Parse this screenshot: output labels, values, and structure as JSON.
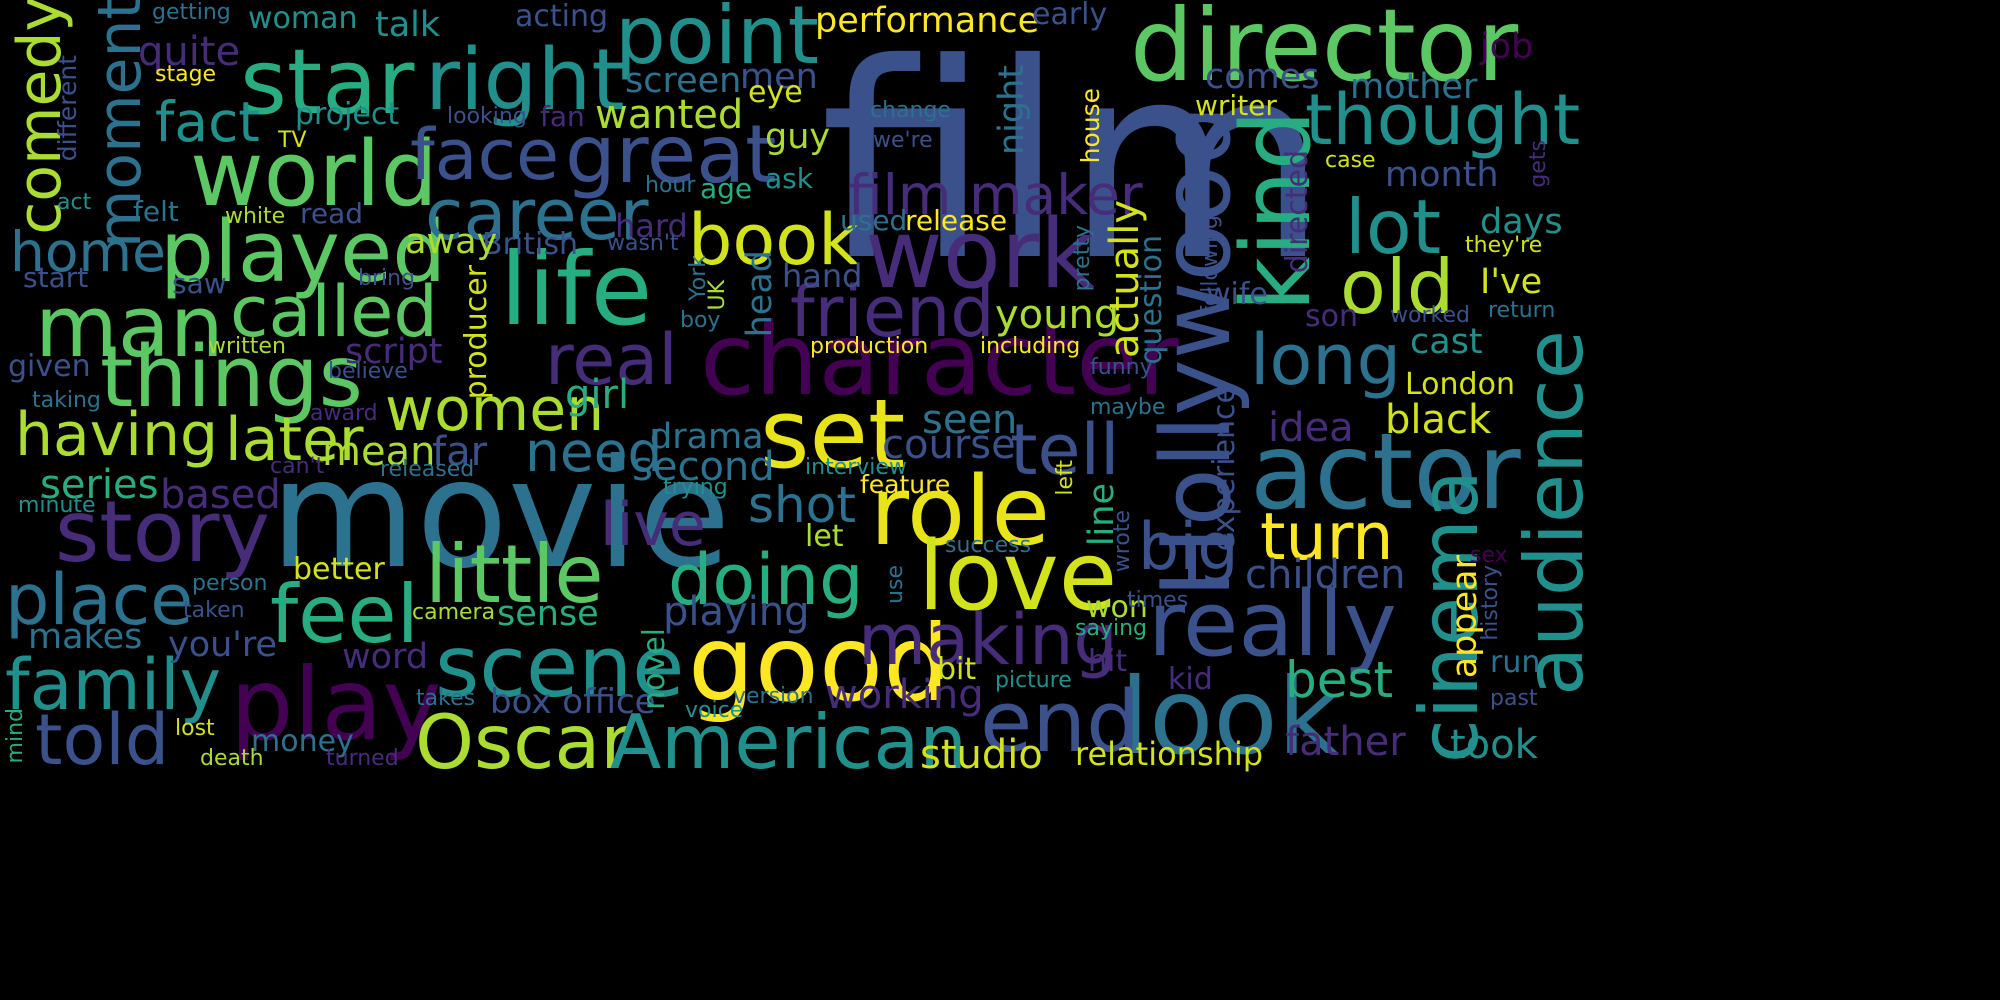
{
  "palette": {
    "background": "#000000",
    "colormap": "viridis",
    "colors": [
      "#440154",
      "#472c7a",
      "#3b518b",
      "#2c718e",
      "#21908d",
      "#27ad81",
      "#5cc863",
      "#aadc32",
      "#fde725"
    ]
  },
  "words": [
    {
      "text": "film",
      "color": "#3b518b"
    },
    {
      "text": "movie",
      "color": "#2c718e"
    },
    {
      "text": "director",
      "color": "#5cc863"
    },
    {
      "text": "character",
      "color": "#440154"
    },
    {
      "text": "work",
      "color": "#472c7a"
    },
    {
      "text": "life",
      "color": "#27ad81"
    },
    {
      "text": "world",
      "color": "#5cc863"
    },
    {
      "text": "star",
      "color": "#27ad81"
    },
    {
      "text": "right",
      "color": "#21908d"
    },
    {
      "text": "great",
      "color": "#3b518b"
    },
    {
      "text": "point",
      "color": "#21908d"
    },
    {
      "text": "actor",
      "color": "#2c718e"
    },
    {
      "text": "Hollywood",
      "color": "#3b518b"
    },
    {
      "text": "kind",
      "color": "#27ad81"
    },
    {
      "text": "really",
      "color": "#3b518b"
    },
    {
      "text": "cinema",
      "color": "#21908d"
    },
    {
      "text": "audience",
      "color": "#21908d"
    },
    {
      "text": "role",
      "color": "#e8e419"
    },
    {
      "text": "good",
      "color": "#fde725"
    },
    {
      "text": "set",
      "color": "#e8e419"
    },
    {
      "text": "love",
      "color": "#d2e21b"
    },
    {
      "text": "scene",
      "color": "#21908d"
    },
    {
      "text": "look",
      "color": "#2c718e"
    },
    {
      "text": "end",
      "color": "#3b518b"
    },
    {
      "text": "play",
      "color": "#440154"
    },
    {
      "text": "story",
      "color": "#472c7a"
    },
    {
      "text": "man",
      "color": "#5cc863"
    },
    {
      "text": "things",
      "color": "#5cc863"
    },
    {
      "text": "played",
      "color": "#5cc863"
    },
    {
      "text": "called",
      "color": "#5cc863"
    },
    {
      "text": "little",
      "color": "#5cc863"
    },
    {
      "text": "Oscar",
      "color": "#aadc32"
    },
    {
      "text": "American",
      "color": "#21908d"
    },
    {
      "text": "career",
      "color": "#2c718e"
    },
    {
      "text": "face",
      "color": "#3b518b"
    },
    {
      "text": "friend",
      "color": "#472c7a"
    },
    {
      "text": "real",
      "color": "#472c7a"
    },
    {
      "text": "film maker",
      "color": "#472c7a"
    },
    {
      "text": "thought",
      "color": "#21908d"
    },
    {
      "text": "lot",
      "color": "#21908d"
    },
    {
      "text": "old",
      "color": "#aadc32"
    },
    {
      "text": "long",
      "color": "#2c718e"
    },
    {
      "text": "tell",
      "color": "#3b518b"
    },
    {
      "text": "big",
      "color": "#3b518b"
    },
    {
      "text": "turn",
      "color": "#fde725"
    },
    {
      "text": "making",
      "color": "#472c7a"
    },
    {
      "text": "doing",
      "color": "#27ad81"
    },
    {
      "text": "live",
      "color": "#472c7a"
    },
    {
      "text": "feel",
      "color": "#27ad81"
    },
    {
      "text": "family",
      "color": "#21908d"
    },
    {
      "text": "told",
      "color": "#3b518b"
    },
    {
      "text": "place",
      "color": "#2c718e"
    },
    {
      "text": "home",
      "color": "#2c718e"
    },
    {
      "text": "having",
      "color": "#aadc32"
    },
    {
      "text": "later",
      "color": "#aadc32"
    },
    {
      "text": "women",
      "color": "#aadc32"
    },
    {
      "text": "need",
      "color": "#2c718e"
    },
    {
      "text": "book",
      "color": "#d2e21b"
    },
    {
      "text": "moment",
      "color": "#2c718e"
    },
    {
      "text": "comedy",
      "color": "#aadc32"
    },
    {
      "text": "fact",
      "color": "#21908d"
    },
    {
      "text": "shot",
      "color": "#2c718e"
    },
    {
      "text": "best",
      "color": "#27ad81"
    },
    {
      "text": "children",
      "color": "#3b518b"
    },
    {
      "text": "days",
      "color": "#21908d"
    },
    {
      "text": "I've",
      "color": "#d2e21b"
    },
    {
      "text": "London",
      "color": "#d2e21b"
    },
    {
      "text": "black",
      "color": "#d2e21b"
    },
    {
      "text": "father",
      "color": "#472c7a"
    },
    {
      "text": "took",
      "color": "#21908d"
    },
    {
      "text": "studio",
      "color": "#d2e21b"
    },
    {
      "text": "relationship",
      "color": "#d2e21b"
    },
    {
      "text": "box office",
      "color": "#3b518b"
    },
    {
      "text": "working",
      "color": "#472c7a"
    },
    {
      "text": "wanted",
      "color": "#aadc32"
    },
    {
      "text": "performance",
      "color": "#fde725"
    },
    {
      "text": "screen",
      "color": "#2c718e"
    },
    {
      "text": "men",
      "color": "#3b518b"
    },
    {
      "text": "talk",
      "color": "#21908d"
    },
    {
      "text": "woman",
      "color": "#21908d"
    },
    {
      "text": "acting",
      "color": "#3b518b"
    },
    {
      "text": "early",
      "color": "#3b518b"
    },
    {
      "text": "getting",
      "color": "#2c718e"
    },
    {
      "text": "quite",
      "color": "#472c7a"
    },
    {
      "text": "stage",
      "color": "#fde725"
    },
    {
      "text": "project",
      "color": "#21908d"
    },
    {
      "text": "looking",
      "color": "#3b518b"
    },
    {
      "text": "fan",
      "color": "#472c7a"
    },
    {
      "text": "TV",
      "color": "#d2e21b"
    },
    {
      "text": "eye",
      "color": "#d2e21b"
    },
    {
      "text": "guy",
      "color": "#aadc32"
    },
    {
      "text": "comes",
      "color": "#3b518b"
    },
    {
      "text": "mother",
      "color": "#2c718e"
    },
    {
      "text": "writer",
      "color": "#d2e21b"
    },
    {
      "text": "job",
      "color": "#440154"
    },
    {
      "text": "change",
      "color": "#2c718e"
    },
    {
      "text": "we're",
      "color": "#3b518b"
    },
    {
      "text": "night",
      "color": "#2c718e"
    },
    {
      "text": "house",
      "color": "#fde725"
    },
    {
      "text": "case",
      "color": "#d2e21b"
    },
    {
      "text": "month",
      "color": "#3b518b"
    },
    {
      "text": "gets",
      "color": "#472c7a"
    },
    {
      "text": "they're",
      "color": "#d2e21b"
    },
    {
      "text": "return",
      "color": "#2c718e"
    },
    {
      "text": "different",
      "color": "#3b518b"
    },
    {
      "text": "act",
      "color": "#21908d"
    },
    {
      "text": "felt",
      "color": "#2c718e"
    },
    {
      "text": "white",
      "color": "#aadc32"
    },
    {
      "text": "read",
      "color": "#3b518b"
    },
    {
      "text": "hour",
      "color": "#2c718e"
    },
    {
      "text": "age",
      "color": "#27ad81"
    },
    {
      "text": "ask",
      "color": "#21908d"
    },
    {
      "text": "used",
      "color": "#2c718e"
    },
    {
      "text": "release",
      "color": "#fde725"
    },
    {
      "text": "hard",
      "color": "#472c7a"
    },
    {
      "text": "wasn't",
      "color": "#3b518b"
    },
    {
      "text": "British",
      "color": "#3b518b"
    },
    {
      "text": "away",
      "color": "#aadc32"
    },
    {
      "text": "start",
      "color": "#3b518b"
    },
    {
      "text": "saw",
      "color": "#3b518b"
    },
    {
      "text": "bring",
      "color": "#3b518b"
    },
    {
      "text": "hand",
      "color": "#3b518b"
    },
    {
      "text": "head",
      "color": "#2c718e"
    },
    {
      "text": "York",
      "color": "#2c718e"
    },
    {
      "text": "UK",
      "color": "#aadc32"
    },
    {
      "text": "producer",
      "color": "#d2e21b"
    },
    {
      "text": "boy",
      "color": "#2c718e"
    },
    {
      "text": "young",
      "color": "#aadc32"
    },
    {
      "text": "actually",
      "color": "#d2e21b"
    },
    {
      "text": "question",
      "color": "#2c718e"
    },
    {
      "text": "pretty",
      "color": "#2c718e"
    },
    {
      "text": "following",
      "color": "#3b518b"
    },
    {
      "text": "directed",
      "color": "#472c7a"
    },
    {
      "text": "wife",
      "color": "#3b518b"
    },
    {
      "text": "son",
      "color": "#472c7a"
    },
    {
      "text": "worked",
      "color": "#3b518b"
    },
    {
      "text": "cast",
      "color": "#21908d"
    },
    {
      "text": "given",
      "color": "#3b518b"
    },
    {
      "text": "written",
      "color": "#aadc32"
    },
    {
      "text": "script",
      "color": "#472c7a"
    },
    {
      "text": "believe",
      "color": "#3b518b"
    },
    {
      "text": "production",
      "color": "#fde725"
    },
    {
      "text": "including",
      "color": "#fde725"
    },
    {
      "text": "funny",
      "color": "#3b518b"
    },
    {
      "text": "taking",
      "color": "#2c718e"
    },
    {
      "text": "award",
      "color": "#472c7a"
    },
    {
      "text": "girl",
      "color": "#27ad81"
    },
    {
      "text": "seen",
      "color": "#2c718e"
    },
    {
      "text": "maybe",
      "color": "#2c718e"
    },
    {
      "text": "idea",
      "color": "#472c7a"
    },
    {
      "text": "experience",
      "color": "#3b518b"
    },
    {
      "text": "mean",
      "color": "#aadc32"
    },
    {
      "text": "far",
      "color": "#3b518b"
    },
    {
      "text": "drama",
      "color": "#2c718e"
    },
    {
      "text": "course",
      "color": "#3b518b"
    },
    {
      "text": "second",
      "color": "#2c718e"
    },
    {
      "text": "can't",
      "color": "#472c7a"
    },
    {
      "text": "released",
      "color": "#2c718e"
    },
    {
      "text": "interview",
      "color": "#21908d"
    },
    {
      "text": "series",
      "color": "#27ad81"
    },
    {
      "text": "based",
      "color": "#472c7a"
    },
    {
      "text": "minute",
      "color": "#21908d"
    },
    {
      "text": "trying",
      "color": "#21908d"
    },
    {
      "text": "feature",
      "color": "#fde725"
    },
    {
      "text": "left",
      "color": "#d2e21b"
    },
    {
      "text": "line",
      "color": "#27ad81"
    },
    {
      "text": "wrote",
      "color": "#3b518b"
    },
    {
      "text": "let",
      "color": "#aadc32"
    },
    {
      "text": "success",
      "color": "#2c718e"
    },
    {
      "text": "better",
      "color": "#d2e21b"
    },
    {
      "text": "person",
      "color": "#2c718e"
    },
    {
      "text": "taken",
      "color": "#3b518b"
    },
    {
      "text": "camera",
      "color": "#aadc32"
    },
    {
      "text": "sense",
      "color": "#27ad81"
    },
    {
      "text": "playing",
      "color": "#3b518b"
    },
    {
      "text": "makes",
      "color": "#2c718e"
    },
    {
      "text": "you're",
      "color": "#3b518b"
    },
    {
      "text": "word",
      "color": "#472c7a"
    },
    {
      "text": "novel",
      "color": "#27ad81"
    },
    {
      "text": "use",
      "color": "#2c718e"
    },
    {
      "text": "won",
      "color": "#aadc32"
    },
    {
      "text": "saying",
      "color": "#27ad81"
    },
    {
      "text": "hit",
      "color": "#472c7a"
    },
    {
      "text": "times",
      "color": "#3b518b"
    },
    {
      "text": "appear",
      "color": "#fde725"
    },
    {
      "text": "history",
      "color": "#3b518b"
    },
    {
      "text": "sex",
      "color": "#440154"
    },
    {
      "text": "run",
      "color": "#2c718e"
    },
    {
      "text": "past",
      "color": "#3b518b"
    },
    {
      "text": "bit",
      "color": "#d2e21b"
    },
    {
      "text": "picture",
      "color": "#21908d"
    },
    {
      "text": "kid",
      "color": "#472c7a"
    },
    {
      "text": "takes",
      "color": "#2c718e"
    },
    {
      "text": "voice",
      "color": "#21908d"
    },
    {
      "text": "version",
      "color": "#2c718e"
    },
    {
      "text": "money",
      "color": "#2c718e"
    },
    {
      "text": "lost",
      "color": "#d2e21b"
    },
    {
      "text": "death",
      "color": "#aadc32"
    },
    {
      "text": "turned",
      "color": "#472c7a"
    },
    {
      "text": "mind",
      "color": "#27ad81"
    }
  ]
}
